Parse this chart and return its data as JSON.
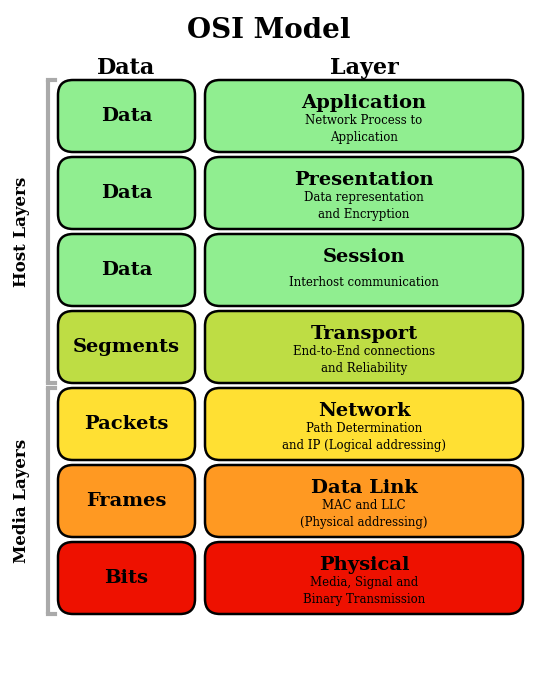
{
  "title": "OSI Model",
  "col_header_data": "Data",
  "col_header_layer": "Layer",
  "layers": [
    {
      "data_label": "Data",
      "layer_name": "Application",
      "layer_desc": "Network Process to\nApplication",
      "data_color": "#90EE90",
      "layer_color": "#90EE90",
      "group": "host"
    },
    {
      "data_label": "Data",
      "layer_name": "Presentation",
      "layer_desc": "Data representation\nand Encryption",
      "data_color": "#90EE90",
      "layer_color": "#90EE90",
      "group": "host"
    },
    {
      "data_label": "Data",
      "layer_name": "Session",
      "layer_desc": "Interhost communication",
      "data_color": "#90EE90",
      "layer_color": "#90EE90",
      "group": "host"
    },
    {
      "data_label": "Segments",
      "layer_name": "Transport",
      "layer_desc": "End-to-End connections\nand Reliability",
      "data_color": "#BEDD44",
      "layer_color": "#BEDD44",
      "group": "host"
    },
    {
      "data_label": "Packets",
      "layer_name": "Network",
      "layer_desc": "Path Determination\nand IP (Logical addressing)",
      "data_color": "#FFE033",
      "layer_color": "#FFE033",
      "group": "media"
    },
    {
      "data_label": "Frames",
      "layer_name": "Data Link",
      "layer_desc": "MAC and LLC\n(Physical addressing)",
      "data_color": "#FF9922",
      "layer_color": "#FF9922",
      "group": "media"
    },
    {
      "data_label": "Bits",
      "layer_name": "Physical",
      "layer_desc": "Media, Signal and\nBinary Transmission",
      "data_color": "#EE1100",
      "layer_color": "#EE1100",
      "group": "media"
    }
  ],
  "host_label": "Host Layers",
  "media_label": "Media Layers",
  "background_color": "#ffffff",
  "border_color": "#000000",
  "fig_width": 5.37,
  "fig_height": 6.86,
  "dpi": 100
}
